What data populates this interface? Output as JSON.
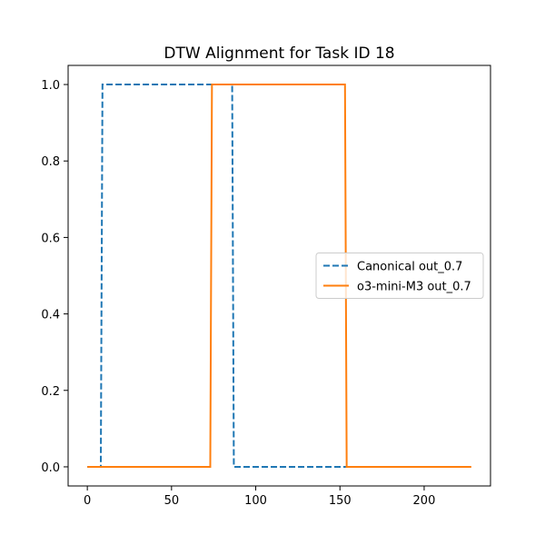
{
  "chart_data": {
    "type": "line",
    "title": "DTW Alignment for Task ID 18",
    "xlabel": "",
    "ylabel": "",
    "xlim": [
      -11.4,
      239.4
    ],
    "ylim": [
      -0.05,
      1.05
    ],
    "xticks": [
      0,
      50,
      100,
      150,
      200
    ],
    "xtick_labels": [
      "0",
      "50",
      "100",
      "150",
      "200"
    ],
    "yticks": [
      0.0,
      0.2,
      0.4,
      0.6,
      0.8,
      1.0
    ],
    "ytick_labels": [
      "0.0",
      "0.2",
      "0.4",
      "0.6",
      "0.8",
      "1.0"
    ],
    "grid": false,
    "legend_position": "center-right",
    "series": [
      {
        "name": "Canonical out_0.7",
        "color": "#1f77b4",
        "linestyle": "dashed",
        "x": [
          0,
          8,
          9,
          86,
          87,
          154
        ],
        "y": [
          0,
          0,
          1,
          1,
          0,
          0
        ]
      },
      {
        "name": "o3-mini-M3 out_0.7",
        "color": "#ff7f0e",
        "linestyle": "solid",
        "x": [
          0,
          73,
          74,
          153,
          154,
          228
        ],
        "y": [
          0,
          0,
          1,
          1,
          0,
          0
        ]
      }
    ]
  }
}
